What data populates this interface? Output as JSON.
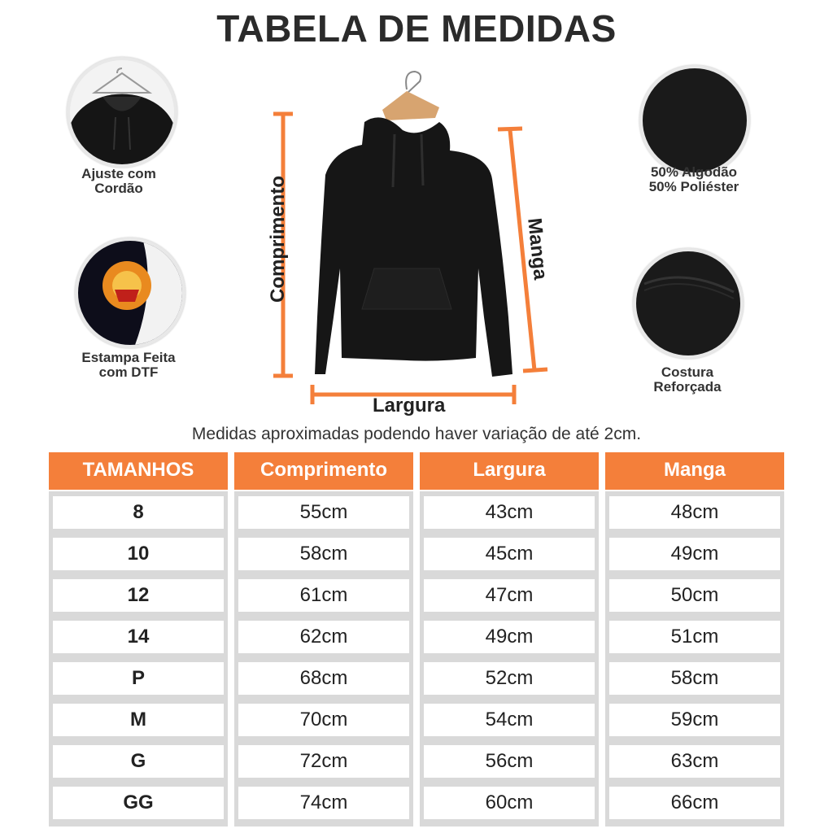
{
  "title": "TABELA DE MEDIDAS",
  "features": [
    {
      "line1": "Ajuste com",
      "line2": "Cordão",
      "icon": "hoodie-hood-drawstring-icon"
    },
    {
      "line1": "Estampa Feita",
      "line2": "com DTF",
      "icon": "print-detail-icon"
    },
    {
      "line1": "50% Algodão",
      "line2": "50% Poliéster",
      "icon": "fabric-texture-icon"
    },
    {
      "line1": "Costura",
      "line2": "Reforçada",
      "icon": "seam-detail-icon"
    }
  ],
  "diagram": {
    "length_label": "Comprimento",
    "sleeve_label": "Manga",
    "width_label": "Largura"
  },
  "note": "Medidas aproximadas podendo haver variação de até 2cm.",
  "colors": {
    "accent": "#f47f3a",
    "cell_border": "#d9d9d9"
  },
  "table": {
    "headers": [
      "TAMANHOS",
      "Comprimento",
      "Largura",
      "Manga"
    ],
    "rows": [
      [
        "8",
        "55cm",
        "43cm",
        "48cm"
      ],
      [
        "10",
        "58cm",
        "45cm",
        "49cm"
      ],
      [
        "12",
        "61cm",
        "47cm",
        "50cm"
      ],
      [
        "14",
        "62cm",
        "49cm",
        "51cm"
      ],
      [
        "P",
        "68cm",
        "52cm",
        "58cm"
      ],
      [
        "M",
        "70cm",
        "54cm",
        "59cm"
      ],
      [
        "G",
        "72cm",
        "56cm",
        "63cm"
      ],
      [
        "GG",
        "74cm",
        "60cm",
        "66cm"
      ]
    ]
  }
}
